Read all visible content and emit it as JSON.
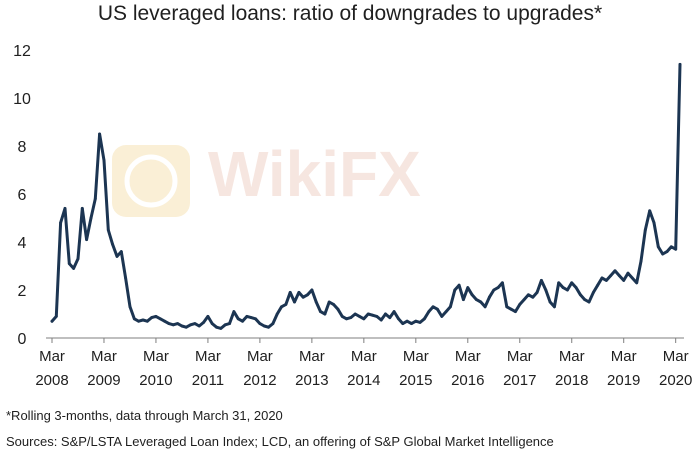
{
  "chart_data": {
    "type": "line",
    "title": "US leveraged loans: ratio of downgrades to upgrades*",
    "xlabel": "",
    "ylabel": "",
    "ylim": [
      0,
      12
    ],
    "yticks": [
      0,
      2,
      4,
      6,
      8,
      10,
      12
    ],
    "xlim": [
      2008.167,
      2020.25
    ],
    "xticks": [
      {
        "label_top": "Mar",
        "label_bottom": "2008"
      },
      {
        "label_top": "Mar",
        "label_bottom": "2009"
      },
      {
        "label_top": "Mar",
        "label_bottom": "2010"
      },
      {
        "label_top": "Mar",
        "label_bottom": "2011"
      },
      {
        "label_top": "Mar",
        "label_bottom": "2012"
      },
      {
        "label_top": "Mar",
        "label_bottom": "2013"
      },
      {
        "label_top": "Mar",
        "label_bottom": "2014"
      },
      {
        "label_top": "Mar",
        "label_bottom": "2015"
      },
      {
        "label_top": "Mar",
        "label_bottom": "2016"
      },
      {
        "label_top": "Mar",
        "label_bottom": "2017"
      },
      {
        "label_top": "Mar",
        "label_bottom": "2018"
      },
      {
        "label_top": "Mar",
        "label_bottom": "2019"
      },
      {
        "label_top": "Mar",
        "label_bottom": "2020"
      }
    ],
    "grid": false,
    "legend": "none",
    "line_color": "#1c3552",
    "series": [
      {
        "x": [
          2008.167,
          2008.25,
          2008.333,
          2008.417,
          2008.5,
          2008.583,
          2008.667,
          2008.75,
          2008.833,
          2008.917,
          2009.0,
          2009.083,
          2009.167,
          2009.25,
          2009.333,
          2009.417,
          2009.5,
          2009.583,
          2009.667,
          2009.75,
          2009.833,
          2009.917,
          2010.0,
          2010.083,
          2010.167,
          2010.25,
          2010.333,
          2010.417,
          2010.5,
          2010.583,
          2010.667,
          2010.75,
          2010.833,
          2010.917,
          2011.0,
          2011.083,
          2011.167,
          2011.25,
          2011.333,
          2011.417,
          2011.5,
          2011.583,
          2011.667,
          2011.75,
          2011.833,
          2011.917,
          2012.0,
          2012.083,
          2012.167,
          2012.25,
          2012.333,
          2012.417,
          2012.5,
          2012.583,
          2012.667,
          2012.75,
          2012.833,
          2012.917,
          2013.0,
          2013.083,
          2013.167,
          2013.25,
          2013.333,
          2013.417,
          2013.5,
          2013.583,
          2013.667,
          2013.75,
          2013.833,
          2013.917,
          2014.0,
          2014.083,
          2014.167,
          2014.25,
          2014.333,
          2014.417,
          2014.5,
          2014.583,
          2014.667,
          2014.75,
          2014.833,
          2014.917,
          2015.0,
          2015.083,
          2015.167,
          2015.25,
          2015.333,
          2015.417,
          2015.5,
          2015.583,
          2015.667,
          2015.75,
          2015.833,
          2015.917,
          2016.0,
          2016.083,
          2016.167,
          2016.25,
          2016.333,
          2016.417,
          2016.5,
          2016.583,
          2016.667,
          2016.75,
          2016.833,
          2016.917,
          2017.0,
          2017.083,
          2017.167,
          2017.25,
          2017.333,
          2017.417,
          2017.5,
          2017.583,
          2017.667,
          2017.75,
          2017.833,
          2017.917,
          2018.0,
          2018.083,
          2018.167,
          2018.25,
          2018.333,
          2018.417,
          2018.5,
          2018.583,
          2018.667,
          2018.75,
          2018.833,
          2018.917,
          2019.0,
          2019.083,
          2019.167,
          2019.25,
          2019.333,
          2019.417,
          2019.5,
          2019.583,
          2019.667,
          2019.75,
          2019.833,
          2019.917,
          2020.0,
          2020.083,
          2020.167,
          2020.25
        ],
        "values": [
          0.7,
          0.9,
          4.8,
          5.4,
          3.1,
          2.9,
          3.3,
          5.4,
          4.1,
          5.0,
          5.8,
          8.5,
          7.4,
          4.5,
          3.9,
          3.4,
          3.6,
          2.5,
          1.3,
          0.8,
          0.7,
          0.75,
          0.7,
          0.85,
          0.9,
          0.8,
          0.7,
          0.6,
          0.55,
          0.6,
          0.5,
          0.45,
          0.55,
          0.6,
          0.5,
          0.65,
          0.9,
          0.6,
          0.45,
          0.4,
          0.55,
          0.6,
          1.1,
          0.8,
          0.7,
          0.9,
          0.85,
          0.8,
          0.6,
          0.5,
          0.45,
          0.6,
          1.0,
          1.3,
          1.4,
          1.9,
          1.5,
          1.9,
          1.7,
          1.8,
          2.0,
          1.5,
          1.1,
          1.0,
          1.5,
          1.4,
          1.2,
          0.9,
          0.8,
          0.85,
          1.0,
          0.9,
          0.8,
          1.0,
          0.95,
          0.9,
          0.75,
          1.0,
          0.85,
          1.1,
          0.8,
          0.6,
          0.7,
          0.6,
          0.7,
          0.65,
          0.8,
          1.1,
          1.3,
          1.2,
          0.9,
          1.1,
          1.3,
          2.0,
          2.2,
          1.6,
          2.1,
          1.8,
          1.6,
          1.5,
          1.3,
          1.7,
          2.0,
          2.1,
          2.3,
          1.3,
          1.2,
          1.1,
          1.4,
          1.6,
          1.8,
          1.7,
          1.9,
          2.4,
          2.0,
          1.5,
          1.3,
          2.3,
          2.1,
          2.0,
          2.3,
          2.1,
          1.8,
          1.6,
          1.5,
          1.9,
          2.2,
          2.5,
          2.4,
          2.6,
          2.8,
          2.6,
          2.4,
          2.7,
          2.5,
          2.3,
          3.2,
          4.5,
          5.3,
          4.8,
          3.8,
          3.5,
          3.6,
          3.8,
          3.7,
          11.4
        ]
      }
    ],
    "footnotes": [
      "*Rolling 3-months, data through March 31, 2020",
      "Sources: S&P/LSTA Leveraged Loan Index; LCD, an offering of S&P Global Market Intelligence"
    ]
  },
  "watermark": {
    "text": "WikiFX",
    "color": "#e8b9a8",
    "icon_color": "#f1d38c",
    "icon": "lion-shield-logo-icon"
  }
}
